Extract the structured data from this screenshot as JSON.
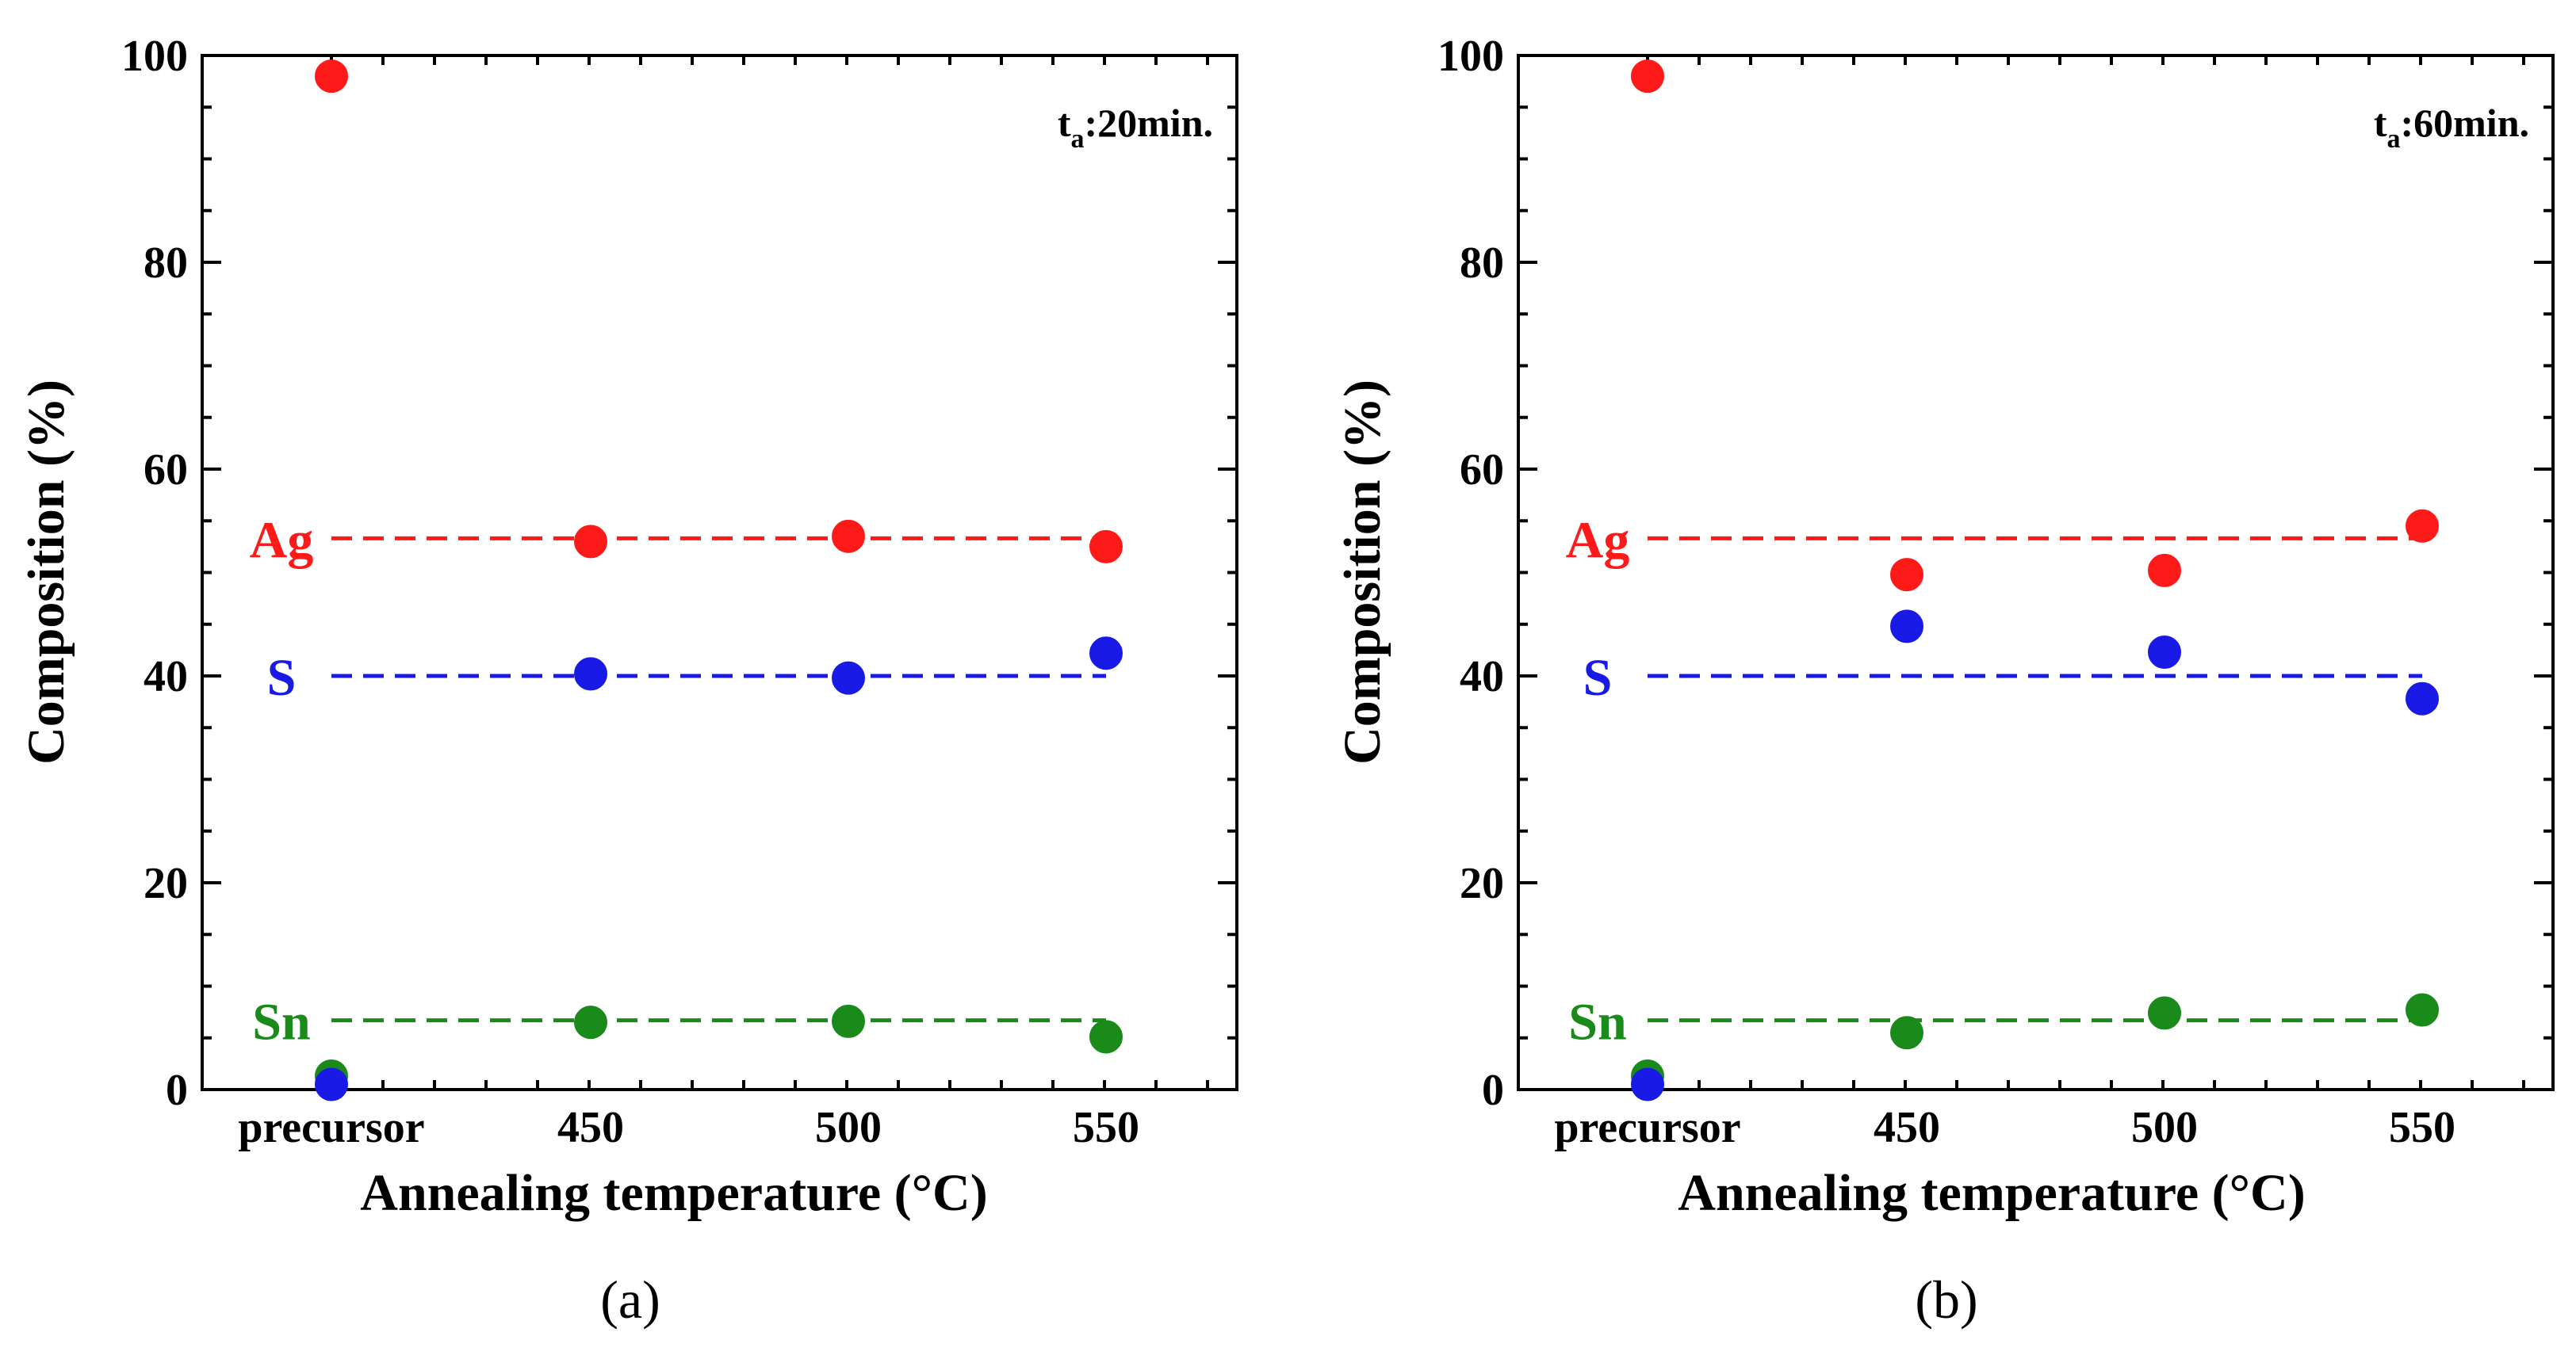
{
  "colors": {
    "Ag": "#ff1a1a",
    "S": "#1a1ae6",
    "Sn": "#1a8a1a"
  },
  "chart_data": [
    {
      "type": "scatter",
      "panel_label": "(a)",
      "annotation": {
        "main": "t",
        "sub": "a",
        "rest": ":20min."
      },
      "xlabel": "Annealing temperature (°C)",
      "ylabel": "Composition (%)",
      "categories": [
        "precursor",
        "450",
        "500",
        "550"
      ],
      "ylim": [
        0,
        100
      ],
      "yticks": [
        "0",
        "20",
        "40",
        "60",
        "80",
        "100"
      ],
      "series": [
        {
          "name": "Ag",
          "values": [
            98,
            53,
            53.5,
            52.5
          ],
          "reference": 53.3
        },
        {
          "name": "S",
          "values": [
            0.5,
            40.2,
            39.8,
            42.2
          ],
          "reference": 40
        },
        {
          "name": "Sn",
          "values": [
            1.3,
            6.5,
            6.6,
            5.1
          ],
          "reference": 6.7
        }
      ]
    },
    {
      "type": "scatter",
      "panel_label": "(b)",
      "annotation": {
        "main": "t",
        "sub": "a",
        "rest": ":60min."
      },
      "xlabel": "Annealing temperature (°C)",
      "ylabel": "Composition (%)",
      "categories": [
        "precursor",
        "450",
        "500",
        "550"
      ],
      "ylim": [
        0,
        100
      ],
      "yticks": [
        "0",
        "20",
        "40",
        "60",
        "80",
        "100"
      ],
      "series": [
        {
          "name": "Ag",
          "values": [
            98,
            49.8,
            50.2,
            54.5
          ],
          "reference": 53.3
        },
        {
          "name": "S",
          "values": [
            0.5,
            44.8,
            42.3,
            37.8
          ],
          "reference": 40
        },
        {
          "name": "Sn",
          "values": [
            1.3,
            5.5,
            7.4,
            7.7
          ],
          "reference": 6.7
        }
      ]
    }
  ]
}
